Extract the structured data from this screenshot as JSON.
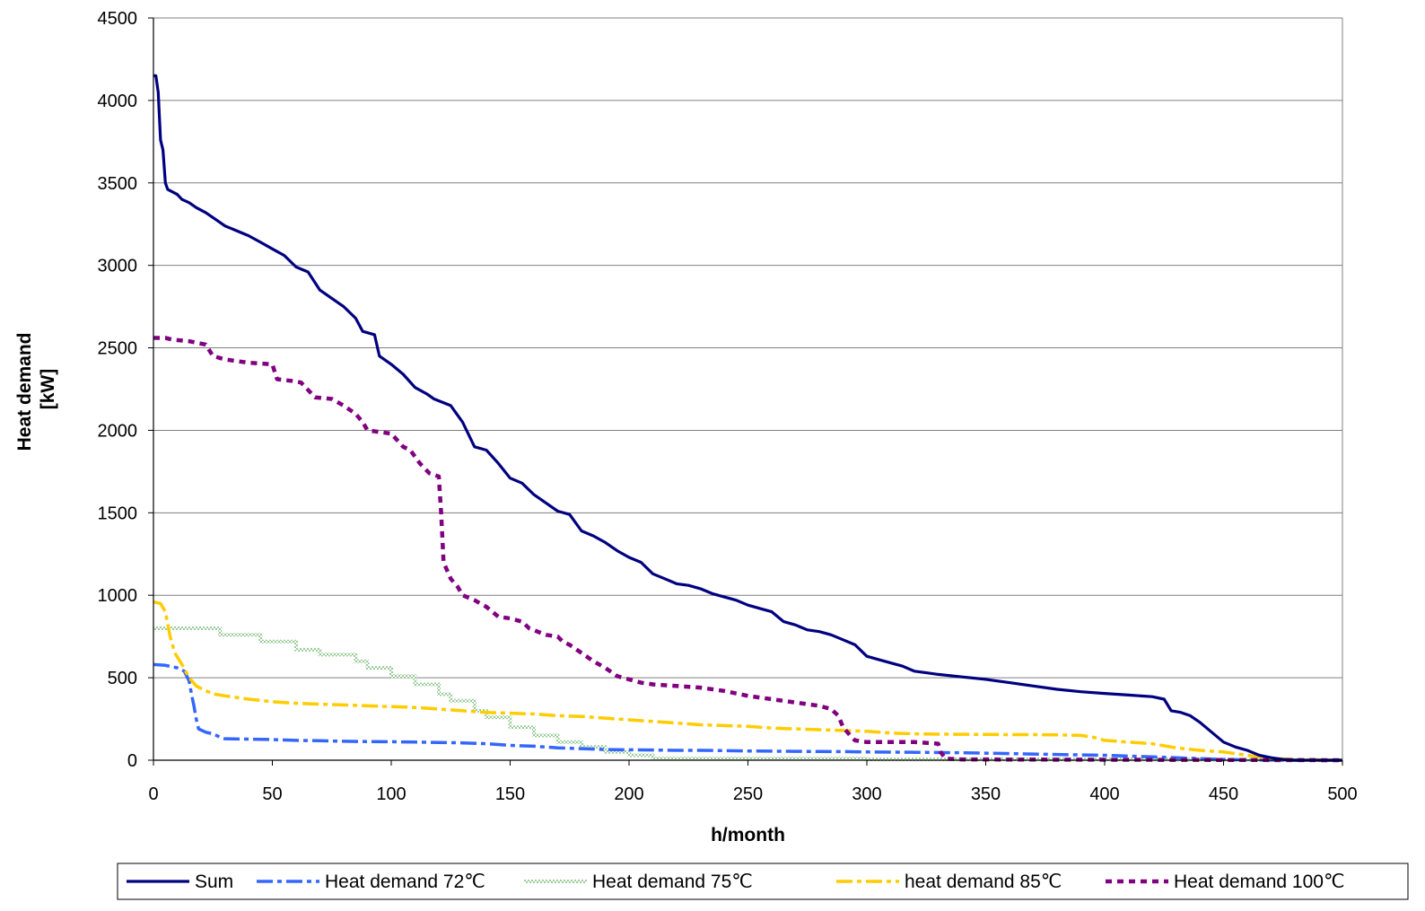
{
  "chart_data": {
    "type": "line",
    "title": "",
    "xlabel": "h/month",
    "ylabel": [
      "Heat demand",
      "[kW]"
    ],
    "xlim": [
      0,
      500
    ],
    "ylim": [
      0,
      4500
    ],
    "x_ticks": [
      0,
      50,
      100,
      150,
      200,
      250,
      300,
      350,
      400,
      450,
      500
    ],
    "y_ticks": [
      0,
      500,
      1000,
      1500,
      2000,
      2500,
      3000,
      3500,
      4000,
      4500
    ],
    "grid": "horizontal",
    "legend_position": "bottom",
    "series": [
      {
        "name": "Sum",
        "color": "#000080",
        "style": "solid",
        "points": [
          [
            0,
            4150
          ],
          [
            1,
            4150
          ],
          [
            2,
            4050
          ],
          [
            3,
            3760
          ],
          [
            4,
            3700
          ],
          [
            5,
            3500
          ],
          [
            6,
            3460
          ],
          [
            10,
            3430
          ],
          [
            12,
            3400
          ],
          [
            15,
            3380
          ],
          [
            18,
            3350
          ],
          [
            22,
            3320
          ],
          [
            26,
            3280
          ],
          [
            30,
            3240
          ],
          [
            35,
            3210
          ],
          [
            40,
            3180
          ],
          [
            45,
            3140
          ],
          [
            50,
            3100
          ],
          [
            55,
            3060
          ],
          [
            60,
            2990
          ],
          [
            65,
            2960
          ],
          [
            70,
            2850
          ],
          [
            75,
            2800
          ],
          [
            80,
            2750
          ],
          [
            85,
            2680
          ],
          [
            88,
            2600
          ],
          [
            93,
            2580
          ],
          [
            95,
            2450
          ],
          [
            100,
            2400
          ],
          [
            105,
            2340
          ],
          [
            110,
            2260
          ],
          [
            115,
            2220
          ],
          [
            118,
            2190
          ],
          [
            125,
            2150
          ],
          [
            130,
            2050
          ],
          [
            135,
            1900
          ],
          [
            140,
            1880
          ],
          [
            145,
            1800
          ],
          [
            150,
            1710
          ],
          [
            155,
            1680
          ],
          [
            160,
            1610
          ],
          [
            165,
            1560
          ],
          [
            170,
            1510
          ],
          [
            175,
            1490
          ],
          [
            180,
            1390
          ],
          [
            185,
            1360
          ],
          [
            190,
            1320
          ],
          [
            195,
            1270
          ],
          [
            200,
            1230
          ],
          [
            205,
            1200
          ],
          [
            210,
            1130
          ],
          [
            215,
            1100
          ],
          [
            220,
            1070
          ],
          [
            225,
            1060
          ],
          [
            230,
            1040
          ],
          [
            235,
            1010
          ],
          [
            240,
            990
          ],
          [
            245,
            970
          ],
          [
            250,
            940
          ],
          [
            255,
            920
          ],
          [
            260,
            900
          ],
          [
            265,
            840
          ],
          [
            270,
            820
          ],
          [
            275,
            790
          ],
          [
            280,
            780
          ],
          [
            285,
            760
          ],
          [
            290,
            730
          ],
          [
            295,
            700
          ],
          [
            300,
            630
          ],
          [
            305,
            610
          ],
          [
            310,
            590
          ],
          [
            315,
            570
          ],
          [
            320,
            540
          ],
          [
            325,
            530
          ],
          [
            330,
            520
          ],
          [
            340,
            505
          ],
          [
            350,
            490
          ],
          [
            360,
            470
          ],
          [
            370,
            450
          ],
          [
            380,
            430
          ],
          [
            390,
            415
          ],
          [
            400,
            405
          ],
          [
            410,
            395
          ],
          [
            420,
            385
          ],
          [
            425,
            370
          ],
          [
            428,
            300
          ],
          [
            432,
            290
          ],
          [
            436,
            270
          ],
          [
            440,
            230
          ],
          [
            445,
            170
          ],
          [
            450,
            110
          ],
          [
            455,
            80
          ],
          [
            460,
            60
          ],
          [
            465,
            30
          ],
          [
            470,
            15
          ],
          [
            475,
            5
          ],
          [
            480,
            0
          ],
          [
            500,
            0
          ]
        ]
      },
      {
        "name": "Heat demand 72℃",
        "color": "#3366FF",
        "style": "dash-dot",
        "points": [
          [
            0,
            580
          ],
          [
            5,
            575
          ],
          [
            10,
            560
          ],
          [
            13,
            540
          ],
          [
            15,
            480
          ],
          [
            16,
            400
          ],
          [
            17,
            330
          ],
          [
            18,
            250
          ],
          [
            19,
            190
          ],
          [
            22,
            170
          ],
          [
            25,
            160
          ],
          [
            28,
            140
          ],
          [
            30,
            130
          ],
          [
            40,
            128
          ],
          [
            50,
            125
          ],
          [
            60,
            120
          ],
          [
            70,
            118
          ],
          [
            80,
            115
          ],
          [
            90,
            113
          ],
          [
            100,
            112
          ],
          [
            110,
            110
          ],
          [
            120,
            108
          ],
          [
            130,
            105
          ],
          [
            140,
            100
          ],
          [
            150,
            90
          ],
          [
            160,
            85
          ],
          [
            170,
            75
          ],
          [
            180,
            70
          ],
          [
            190,
            65
          ],
          [
            200,
            63
          ],
          [
            210,
            62
          ],
          [
            220,
            60
          ],
          [
            230,
            60
          ],
          [
            240,
            58
          ],
          [
            250,
            56
          ],
          [
            260,
            55
          ],
          [
            270,
            54
          ],
          [
            280,
            53
          ],
          [
            290,
            52
          ],
          [
            300,
            50
          ],
          [
            320,
            48
          ],
          [
            340,
            45
          ],
          [
            360,
            40
          ],
          [
            380,
            35
          ],
          [
            400,
            30
          ],
          [
            420,
            20
          ],
          [
            440,
            10
          ],
          [
            450,
            5
          ],
          [
            460,
            2
          ],
          [
            480,
            0
          ],
          [
            500,
            0
          ]
        ]
      },
      {
        "name": "Heat demand  75℃",
        "color": "#99CC99",
        "style": "hatched",
        "points": [
          [
            0,
            800
          ],
          [
            28,
            800
          ],
          [
            28,
            760
          ],
          [
            45,
            760
          ],
          [
            45,
            720
          ],
          [
            60,
            720
          ],
          [
            60,
            670
          ],
          [
            70,
            670
          ],
          [
            70,
            640
          ],
          [
            85,
            640
          ],
          [
            85,
            600
          ],
          [
            90,
            600
          ],
          [
            90,
            560
          ],
          [
            100,
            560
          ],
          [
            100,
            510
          ],
          [
            110,
            510
          ],
          [
            110,
            460
          ],
          [
            120,
            460
          ],
          [
            120,
            400
          ],
          [
            125,
            400
          ],
          [
            125,
            360
          ],
          [
            135,
            360
          ],
          [
            135,
            300
          ],
          [
            140,
            300
          ],
          [
            140,
            260
          ],
          [
            150,
            260
          ],
          [
            150,
            200
          ],
          [
            160,
            200
          ],
          [
            160,
            150
          ],
          [
            170,
            150
          ],
          [
            170,
            110
          ],
          [
            180,
            110
          ],
          [
            180,
            80
          ],
          [
            190,
            80
          ],
          [
            190,
            50
          ],
          [
            200,
            50
          ],
          [
            200,
            30
          ],
          [
            210,
            30
          ],
          [
            210,
            10
          ],
          [
            300,
            10
          ],
          [
            300,
            5
          ],
          [
            400,
            5
          ],
          [
            500,
            0
          ]
        ]
      },
      {
        "name": "heat demand  85℃",
        "color": "#FFCC00",
        "style": "dash-dot",
        "points": [
          [
            0,
            960
          ],
          [
            3,
            950
          ],
          [
            5,
            900
          ],
          [
            7,
            750
          ],
          [
            9,
            650
          ],
          [
            12,
            580
          ],
          [
            15,
            500
          ],
          [
            18,
            450
          ],
          [
            22,
            420
          ],
          [
            26,
            400
          ],
          [
            30,
            390
          ],
          [
            40,
            370
          ],
          [
            50,
            355
          ],
          [
            60,
            345
          ],
          [
            70,
            340
          ],
          [
            80,
            335
          ],
          [
            90,
            330
          ],
          [
            100,
            325
          ],
          [
            110,
            320
          ],
          [
            120,
            310
          ],
          [
            130,
            300
          ],
          [
            140,
            290
          ],
          [
            150,
            285
          ],
          [
            160,
            280
          ],
          [
            170,
            270
          ],
          [
            180,
            265
          ],
          [
            190,
            255
          ],
          [
            200,
            245
          ],
          [
            210,
            235
          ],
          [
            220,
            225
          ],
          [
            230,
            215
          ],
          [
            240,
            210
          ],
          [
            250,
            205
          ],
          [
            260,
            195
          ],
          [
            270,
            190
          ],
          [
            280,
            185
          ],
          [
            290,
            180
          ],
          [
            300,
            175
          ],
          [
            310,
            165
          ],
          [
            320,
            160
          ],
          [
            330,
            158
          ],
          [
            340,
            157
          ],
          [
            350,
            156
          ],
          [
            360,
            155
          ],
          [
            370,
            155
          ],
          [
            380,
            154
          ],
          [
            390,
            150
          ],
          [
            395,
            140
          ],
          [
            400,
            120
          ],
          [
            410,
            110
          ],
          [
            420,
            100
          ],
          [
            430,
            75
          ],
          [
            440,
            60
          ],
          [
            450,
            50
          ],
          [
            460,
            30
          ],
          [
            470,
            10
          ],
          [
            480,
            5
          ],
          [
            500,
            0
          ]
        ]
      },
      {
        "name": "Heat demand 100℃",
        "color": "#800080",
        "style": "dashed",
        "points": [
          [
            0,
            2560
          ],
          [
            5,
            2560
          ],
          [
            8,
            2550
          ],
          [
            15,
            2540
          ],
          [
            22,
            2520
          ],
          [
            25,
            2450
          ],
          [
            30,
            2430
          ],
          [
            35,
            2420
          ],
          [
            40,
            2410
          ],
          [
            50,
            2400
          ],
          [
            52,
            2310
          ],
          [
            58,
            2300
          ],
          [
            62,
            2290
          ],
          [
            68,
            2200
          ],
          [
            75,
            2190
          ],
          [
            80,
            2150
          ],
          [
            85,
            2100
          ],
          [
            88,
            2050
          ],
          [
            90,
            2000
          ],
          [
            95,
            1990
          ],
          [
            100,
            1980
          ],
          [
            105,
            1900
          ],
          [
            108,
            1880
          ],
          [
            112,
            1800
          ],
          [
            116,
            1740
          ],
          [
            120,
            1720
          ],
          [
            121,
            1500
          ],
          [
            122,
            1200
          ],
          [
            125,
            1100
          ],
          [
            128,
            1050
          ],
          [
            130,
            1000
          ],
          [
            135,
            970
          ],
          [
            140,
            930
          ],
          [
            145,
            870
          ],
          [
            150,
            860
          ],
          [
            155,
            840
          ],
          [
            158,
            800
          ],
          [
            165,
            760
          ],
          [
            170,
            750
          ],
          [
            172,
            720
          ],
          [
            175,
            700
          ],
          [
            180,
            650
          ],
          [
            185,
            600
          ],
          [
            190,
            560
          ],
          [
            195,
            510
          ],
          [
            200,
            490
          ],
          [
            205,
            470
          ],
          [
            210,
            460
          ],
          [
            220,
            450
          ],
          [
            230,
            440
          ],
          [
            240,
            420
          ],
          [
            250,
            390
          ],
          [
            260,
            370
          ],
          [
            270,
            350
          ],
          [
            280,
            330
          ],
          [
            285,
            310
          ],
          [
            288,
            270
          ],
          [
            290,
            200
          ],
          [
            293,
            150
          ],
          [
            295,
            120
          ],
          [
            300,
            110
          ],
          [
            320,
            110
          ],
          [
            330,
            100
          ],
          [
            331,
            50
          ],
          [
            333,
            10
          ],
          [
            340,
            5
          ],
          [
            500,
            0
          ]
        ]
      }
    ]
  }
}
